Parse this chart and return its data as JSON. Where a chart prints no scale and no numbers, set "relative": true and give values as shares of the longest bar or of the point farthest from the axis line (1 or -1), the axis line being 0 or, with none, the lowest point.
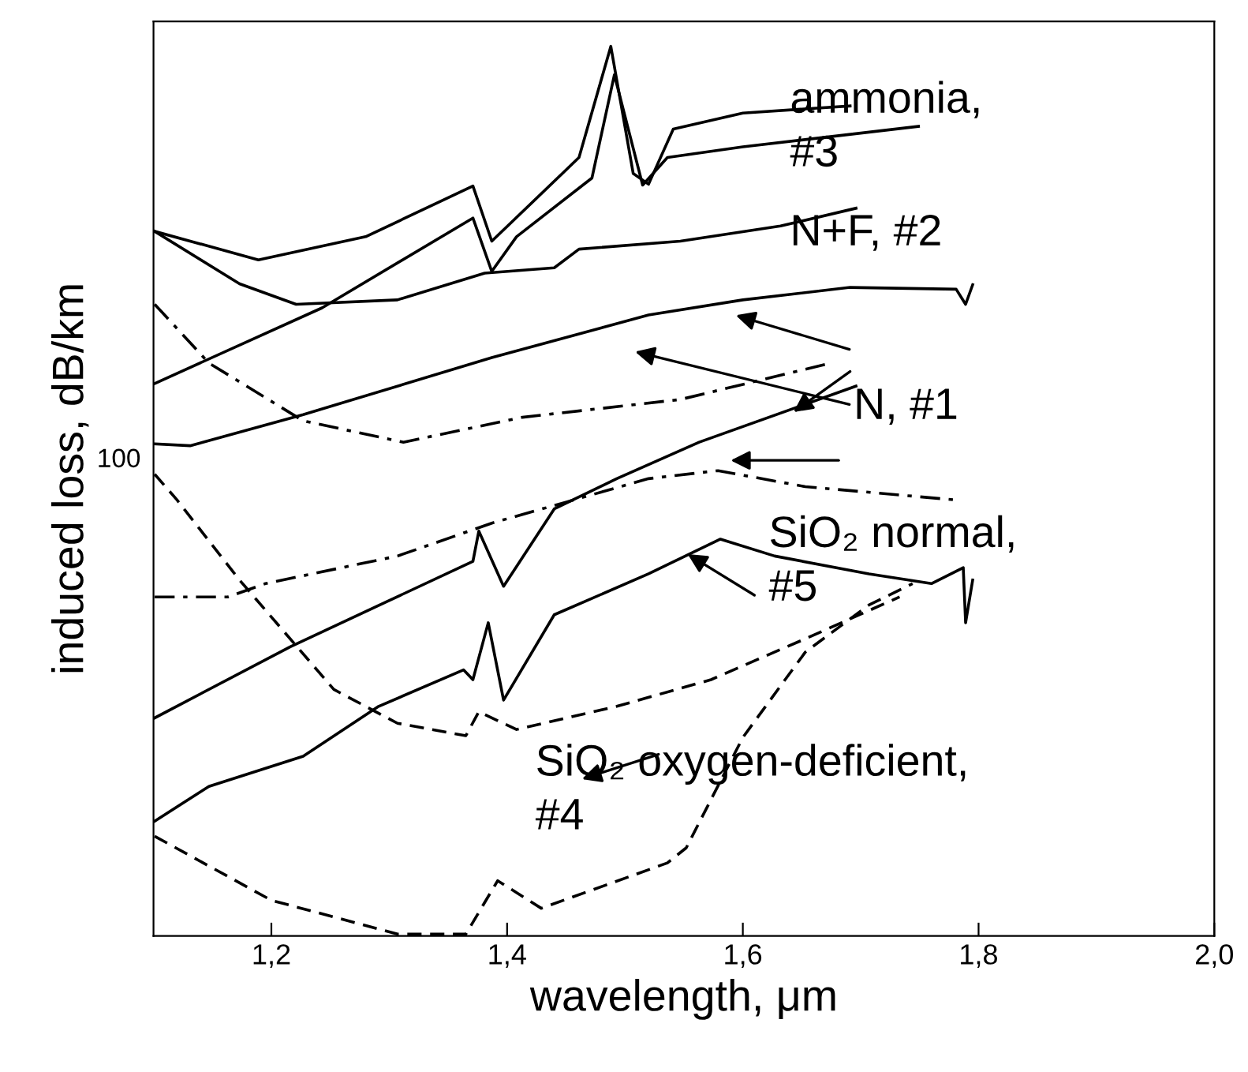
{
  "chart_data": {
    "type": "line",
    "xlabel": "wavelength, μm",
    "ylabel": "induced loss, dB/km",
    "relative": true,
    "grid": false,
    "marker": "none",
    "xlim": [
      1.1,
      2.0
    ],
    "xticks": [
      {
        "value": 1.2,
        "label": "1,2"
      },
      {
        "value": 1.4,
        "label": "1,4"
      },
      {
        "value": 1.6,
        "label": "1,6"
      },
      {
        "value": 1.8,
        "label": "1,8"
      },
      {
        "value": 2.0,
        "label": "2,0"
      }
    ],
    "series": [
      {
        "color": "#000000",
        "line_style": "solid",
        "x": [
          1.101,
          1.243,
          1.371,
          1.387,
          1.408,
          1.472,
          1.491,
          1.515,
          1.536,
          1.6,
          1.749
        ],
        "values": [
          0.621,
          0.706,
          0.807,
          0.747,
          0.786,
          0.852,
          0.968,
          0.844,
          0.875,
          0.887,
          0.91
        ]
      },
      {
        "color": "#000000",
        "line_style": "solid",
        "x": [
          1.101,
          1.189,
          1.28,
          1.371,
          1.387,
          1.461,
          1.488,
          1.507,
          1.52,
          1.541,
          1.6,
          1.691
        ],
        "values": [
          0.792,
          0.76,
          0.786,
          0.843,
          0.781,
          0.875,
          1.0,
          0.857,
          0.845,
          0.907,
          0.925,
          0.933
        ]
      },
      {
        "color": "#000000",
        "line_style": "solid",
        "x": [
          1.101,
          1.173,
          1.221,
          1.307,
          1.381,
          1.44,
          1.461,
          1.547,
          1.632,
          1.696
        ],
        "values": [
          0.792,
          0.733,
          0.71,
          0.715,
          0.745,
          0.751,
          0.772,
          0.781,
          0.798,
          0.818
        ]
      },
      {
        "color": "#000000",
        "line_style": "solid",
        "x": [
          1.101,
          1.131,
          1.227,
          1.387,
          1.52,
          1.6,
          1.691,
          1.781,
          1.789,
          1.795
        ],
        "values": [
          0.553,
          0.551,
          0.586,
          0.65,
          0.698,
          0.715,
          0.729,
          0.727,
          0.71,
          0.732
        ]
      },
      {
        "color": "#000000",
        "line_style": "dashdot",
        "x": [
          1.101,
          1.147,
          1.227,
          1.312,
          1.413,
          1.547,
          1.675
        ],
        "values": [
          0.71,
          0.644,
          0.579,
          0.555,
          0.583,
          0.603,
          0.644
        ]
      },
      {
        "color": "#000000",
        "line_style": "solid",
        "x": [
          1.101,
          1.216,
          1.371,
          1.376,
          1.397,
          1.44,
          1.493,
          1.563,
          1.696
        ],
        "values": [
          0.245,
          0.325,
          0.421,
          0.455,
          0.393,
          0.48,
          0.514,
          0.555,
          0.618
        ]
      },
      {
        "color": "#000000",
        "line_style": "dashdot",
        "x": [
          1.101,
          1.163,
          1.195,
          1.307,
          1.387,
          1.451,
          1.52,
          1.579,
          1.653,
          1.781
        ],
        "values": [
          0.381,
          0.381,
          0.396,
          0.427,
          0.464,
          0.488,
          0.514,
          0.523,
          0.505,
          0.49
        ]
      },
      {
        "color": "#000000",
        "line_style": "solid",
        "x": [
          1.101,
          1.147,
          1.227,
          1.291,
          1.363,
          1.371,
          1.384,
          1.397,
          1.44,
          1.52,
          1.581,
          1.627,
          1.707,
          1.76,
          1.787,
          1.789,
          1.795
        ],
        "values": [
          0.129,
          0.168,
          0.202,
          0.258,
          0.299,
          0.288,
          0.352,
          0.265,
          0.361,
          0.407,
          0.446,
          0.427,
          0.407,
          0.396,
          0.414,
          0.352,
          0.4
        ]
      },
      {
        "color": "#000000",
        "line_style": "dashed",
        "x": [
          1.101,
          1.12,
          1.173,
          1.253,
          1.307,
          1.365,
          1.376,
          1.408,
          1.493,
          1.573,
          1.653,
          1.733
        ],
        "values": [
          0.519,
          0.49,
          0.4,
          0.277,
          0.239,
          0.225,
          0.252,
          0.232,
          0.258,
          0.288,
          0.334,
          0.381
        ]
      },
      {
        "color": "#000000",
        "line_style": "dashed",
        "x": [
          1.101,
          1.2,
          1.307,
          1.365,
          1.392,
          1.429,
          1.536,
          1.552,
          1.6,
          1.653,
          1.707,
          1.744
        ],
        "values": [
          0.112,
          0.04,
          0.002,
          0.002,
          0.062,
          0.031,
          0.082,
          0.099,
          0.223,
          0.319,
          0.372,
          0.396
        ]
      }
    ],
    "annotations": [
      "ammonia,\n#3",
      "N+F, #2",
      "N, #1",
      "SiO₂ normal,\n#5",
      "SiO₂ oxygen-deficient,\n#4",
      "100"
    ]
  }
}
